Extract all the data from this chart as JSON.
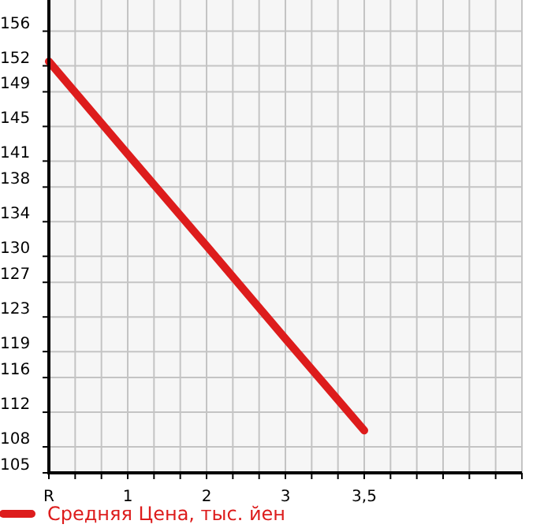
{
  "chart_data": {
    "type": "line",
    "categories": [
      "R",
      "1",
      "2",
      "3",
      "3,5",
      null
    ],
    "series": [
      {
        "name": "Средняя Цена, тыс. йен",
        "color": "#dd1c1c",
        "values": [
          152.5,
          141.8,
          131.2,
          120.5,
          109.9,
          null
        ]
      }
    ],
    "ylim": [
      105,
      159.6
    ],
    "yticks": [
      105,
      108,
      112,
      116,
      119,
      123,
      127,
      130,
      134,
      138,
      141,
      145,
      149,
      152,
      156
    ],
    "grid": true,
    "legend": "bottom left",
    "marker": "none",
    "line_style": "solid"
  }
}
